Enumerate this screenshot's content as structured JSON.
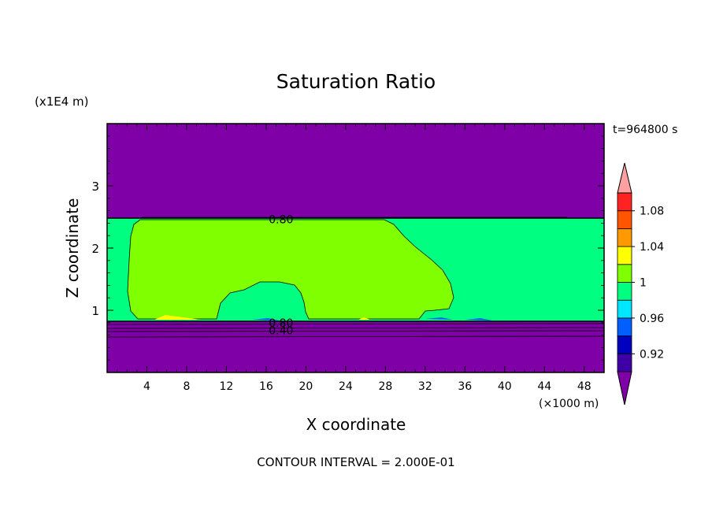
{
  "chart_data": {
    "type": "contour",
    "title": "Saturation Ratio",
    "xlabel": "X coordinate",
    "ylabel": "Z coordinate",
    "x_unit": "(×1000 m)",
    "y_unit": "(x1E4 m)",
    "time_label": "t=964800 s",
    "footer": "CONTOUR INTERVAL = 2.000E-01",
    "xlim": [
      0,
      50
    ],
    "ylim": [
      0,
      4
    ],
    "x_ticks": [
      4,
      8,
      12,
      16,
      20,
      24,
      28,
      32,
      36,
      40,
      44,
      48
    ],
    "y_ticks": [
      1,
      2,
      3
    ],
    "contour_labels": [
      {
        "text": "0.80",
        "x": 17.5,
        "y": 2.46
      },
      {
        "text": "0.80",
        "x": 17.5,
        "y": 0.8
      },
      {
        "text": "0.40",
        "x": 17.5,
        "y": 0.68
      }
    ],
    "colorbar": {
      "levels": [
        0.92,
        0.96,
        1,
        1.04,
        1.08
      ],
      "labels": [
        "0.92",
        "0.96",
        "1",
        "1.04",
        "1.08"
      ],
      "colors": [
        "#7f00a6",
        "#3f00a6",
        "#0000bf",
        "#0060ff",
        "#00e6ff",
        "#00ff80",
        "#80ff00",
        "#ffff00",
        "#ff9900",
        "#ff5500",
        "#ff2222",
        "#ffa0a0"
      ]
    },
    "regions": {
      "upper_dry_top": 2.5,
      "moist_layer": [
        0.83,
        2.5
      ],
      "lower_dry_top": 0.83,
      "moist_value_range": "0.96-1",
      "cloud_value_range": "1-1.04",
      "dry_value_range": "<0.92"
    }
  }
}
